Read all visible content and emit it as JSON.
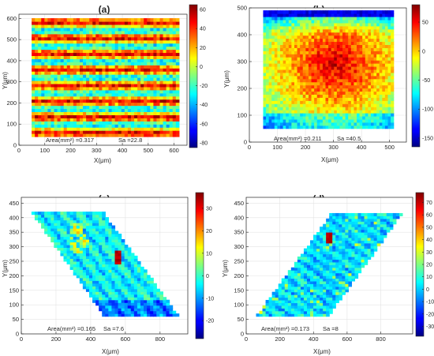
{
  "panels": [
    {
      "label": "(a)",
      "area_text": "Area(mm²) =0.317",
      "sa_text": "Sa =22.8",
      "chart_data": {
        "type": "heatmap",
        "xlabel": "X(μm)",
        "ylabel": "Y(μm)",
        "xlim": [
          0,
          650
        ],
        "ylim": [
          0,
          620
        ],
        "xticks": [
          0,
          100,
          200,
          300,
          400,
          500,
          600
        ],
        "yticks": [
          0,
          100,
          200,
          300,
          400,
          500,
          600
        ],
        "colorbar": {
          "min": -85,
          "max": 65,
          "ticks": [
            60,
            40,
            20,
            0,
            -20,
            -40,
            -60,
            -80
          ]
        },
        "region": [
          [
            50,
            40
          ],
          [
            620,
            40
          ],
          [
            620,
            600
          ],
          [
            50,
            600
          ]
        ],
        "pattern": "horizontal-stripes",
        "grid": true,
        "area_mm2": 0.317,
        "sa": 22.8
      }
    },
    {
      "label": "(b)",
      "area_text": "Area(mm²) =0.211",
      "sa_text": "Sa =40.5",
      "chart_data": {
        "type": "heatmap",
        "xlabel": "X(μm)",
        "ylabel": "Y(μm)",
        "xlim": [
          0,
          560
        ],
        "ylim": [
          0,
          500
        ],
        "xticks": [
          0,
          100,
          200,
          300,
          400,
          500
        ],
        "yticks": [
          0,
          100,
          200,
          300,
          400,
          500
        ],
        "colorbar": {
          "min": -165,
          "max": 80,
          "ticks": [
            50,
            0,
            -50,
            -100,
            -150
          ]
        },
        "region": [
          [
            50,
            50
          ],
          [
            515,
            50
          ],
          [
            515,
            490
          ],
          [
            50,
            490
          ]
        ],
        "pattern": "dome",
        "grid": true,
        "area_mm2": 0.211,
        "sa": 40.5
      }
    },
    {
      "label": "(c)",
      "area_text": "Area(mm²) =0.165",
      "sa_text": "Sa =7.6",
      "chart_data": {
        "type": "heatmap",
        "xlabel": "X(μm)",
        "ylabel": "Y(μm)",
        "xlim": [
          0,
          960
        ],
        "ylim": [
          0,
          470
        ],
        "xticks": [
          0,
          200,
          400,
          600,
          800
        ],
        "yticks": [
          0,
          50,
          100,
          150,
          200,
          250,
          300,
          350,
          400,
          450
        ],
        "colorbar": {
          "min": -28,
          "max": 37,
          "ticks": [
            30,
            20,
            10,
            0,
            -10,
            -20
          ]
        },
        "region": [
          [
            60,
            420
          ],
          [
            470,
            420
          ],
          [
            910,
            60
          ],
          [
            480,
            60
          ]
        ],
        "pattern": "parallelogram-left",
        "grid": true,
        "area_mm2": 0.165,
        "sa": 7.6
      }
    },
    {
      "label": "(d)",
      "area_text": "Area(mm²) =0.173",
      "sa_text": "Sa =8",
      "chart_data": {
        "type": "heatmap",
        "xlabel": "X(μm)",
        "ylabel": "Y(μm)",
        "xlim": [
          0,
          990
        ],
        "ylim": [
          0,
          470
        ],
        "xticks": [
          0,
          200,
          400,
          600,
          800
        ],
        "yticks": [
          0,
          50,
          100,
          150,
          200,
          250,
          300,
          350,
          400,
          450
        ],
        "colorbar": {
          "min": -38,
          "max": 78,
          "ticks": [
            70,
            60,
            50,
            40,
            30,
            20,
            10,
            0,
            -10,
            -20,
            -30
          ]
        },
        "region": [
          [
            60,
            60
          ],
          [
            490,
            60
          ],
          [
            930,
            415
          ],
          [
            510,
            415
          ]
        ],
        "pattern": "parallelogram-right",
        "grid": true,
        "area_mm2": 0.173,
        "sa": 8
      }
    }
  ]
}
